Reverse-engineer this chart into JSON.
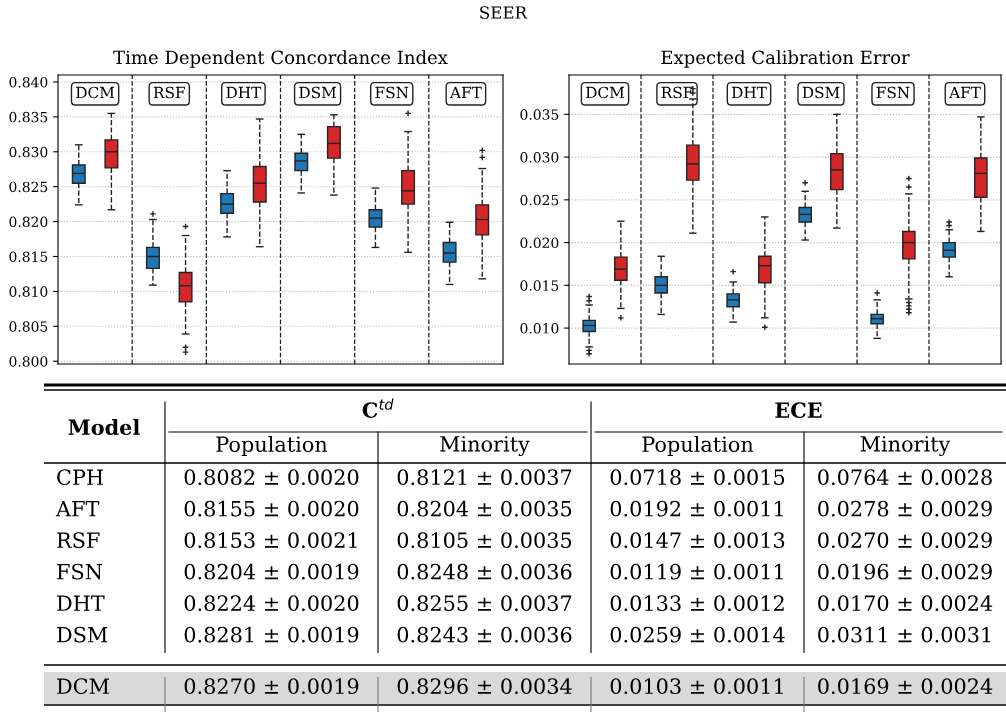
{
  "chart_data": [
    {
      "type": "box",
      "title": "Time Dependent Concordance Index",
      "annotations": [
        "SEER"
      ],
      "categories": [
        "DCM",
        "RSF",
        "DHT",
        "DSM",
        "FSN",
        "AFT"
      ],
      "grid": "y",
      "ylim": [
        0.7996,
        0.841
      ],
      "yticks": [
        {
          "value": 0.8,
          "label": "0.800"
        },
        {
          "value": 0.805,
          "label": "0.805"
        },
        {
          "value": 0.81,
          "label": "0.810"
        },
        {
          "value": 0.815,
          "label": "0.815"
        },
        {
          "value": 0.82,
          "label": "0.820"
        },
        {
          "value": 0.825,
          "label": "0.825"
        },
        {
          "value": 0.83,
          "label": "0.830"
        },
        {
          "value": 0.835,
          "label": "0.835"
        },
        {
          "value": 0.84,
          "label": "0.840"
        }
      ],
      "series": [
        {
          "color": "#1f77b4",
          "boxes": [
            {
              "low": 0.8224,
              "q1": 0.8255,
              "median": 0.8269,
              "q3": 0.8281,
              "high": 0.831
            },
            {
              "low": 0.8109,
              "q1": 0.8133,
              "median": 0.815,
              "q3": 0.8163,
              "high": 0.8203,
              "outliers": [
                0.8211
              ]
            },
            {
              "low": 0.8178,
              "q1": 0.8212,
              "median": 0.8225,
              "q3": 0.824,
              "high": 0.8273
            },
            {
              "low": 0.8241,
              "q1": 0.8273,
              "median": 0.8287,
              "q3": 0.8298,
              "high": 0.8325
            },
            {
              "low": 0.8163,
              "q1": 0.8192,
              "median": 0.8205,
              "q3": 0.8217,
              "high": 0.8248
            },
            {
              "low": 0.811,
              "q1": 0.8142,
              "median": 0.8155,
              "q3": 0.817,
              "high": 0.8199
            }
          ]
        },
        {
          "color": "#d62728",
          "boxes": [
            {
              "low": 0.8217,
              "q1": 0.8277,
              "median": 0.83,
              "q3": 0.8317,
              "high": 0.8355
            },
            {
              "low": 0.8039,
              "q1": 0.8085,
              "median": 0.8108,
              "q3": 0.8127,
              "high": 0.818,
              "outliers": [
                0.8193,
                0.802,
                0.8013
              ]
            },
            {
              "low": 0.8164,
              "q1": 0.8228,
              "median": 0.8255,
              "q3": 0.8279,
              "high": 0.8347
            },
            {
              "low": 0.8238,
              "q1": 0.8291,
              "median": 0.8312,
              "q3": 0.8336,
              "high": 0.8353
            },
            {
              "low": 0.8156,
              "q1": 0.8225,
              "median": 0.8244,
              "q3": 0.8273,
              "high": 0.8329,
              "outliers": [
                0.8355
              ]
            },
            {
              "low": 0.8118,
              "q1": 0.8181,
              "median": 0.8203,
              "q3": 0.8224,
              "high": 0.8276,
              "outliers": [
                0.8302,
                0.8292
              ]
            }
          ]
        }
      ]
    },
    {
      "type": "box",
      "title": "Expected Calibration Error",
      "categories": [
        "DCM",
        "RSF",
        "DHT",
        "DSM",
        "FSN",
        "AFT"
      ],
      "grid": "y",
      "ylim": [
        0.0058,
        0.0396
      ],
      "yticks": [
        {
          "value": 0.01,
          "label": "0.010"
        },
        {
          "value": 0.015,
          "label": "0.015"
        },
        {
          "value": 0.02,
          "label": "0.020"
        },
        {
          "value": 0.025,
          "label": "0.025"
        },
        {
          "value": 0.03,
          "label": "0.030"
        },
        {
          "value": 0.035,
          "label": "0.035"
        }
      ],
      "series": [
        {
          "color": "#1f77b4",
          "boxes": [
            {
              "low": 0.0078,
              "q1": 0.0096,
              "median": 0.0103,
              "q3": 0.0109,
              "high": 0.0127,
              "outliers": [
                0.0137,
                0.0132,
                0.0074,
                0.007
              ]
            },
            {
              "low": 0.0116,
              "q1": 0.0141,
              "median": 0.015,
              "q3": 0.016,
              "high": 0.0184
            },
            {
              "low": 0.0107,
              "q1": 0.0125,
              "median": 0.0133,
              "q3": 0.014,
              "high": 0.0154,
              "outliers": [
                0.0166
              ]
            },
            {
              "low": 0.0203,
              "q1": 0.0224,
              "median": 0.0233,
              "q3": 0.0241,
              "high": 0.026,
              "outliers": [
                0.027
              ]
            },
            {
              "low": 0.0088,
              "q1": 0.0105,
              "median": 0.0111,
              "q3": 0.0116,
              "high": 0.0133,
              "outliers": [
                0.0141
              ]
            },
            {
              "low": 0.016,
              "q1": 0.0183,
              "median": 0.0191,
              "q3": 0.02,
              "high": 0.0215,
              "outliers": [
                0.0224,
                0.022
              ]
            }
          ]
        },
        {
          "color": "#d62728",
          "boxes": [
            {
              "low": 0.0123,
              "q1": 0.0156,
              "median": 0.0169,
              "q3": 0.0183,
              "high": 0.0225,
              "outliers": [
                0.0112
              ]
            },
            {
              "low": 0.0211,
              "q1": 0.0273,
              "median": 0.0292,
              "q3": 0.0314,
              "high": 0.0368,
              "outliers": [
                0.038,
                0.0375
              ]
            },
            {
              "low": 0.0112,
              "q1": 0.0153,
              "median": 0.0173,
              "q3": 0.0184,
              "high": 0.023,
              "outliers": [
                0.0101
              ]
            },
            {
              "low": 0.0217,
              "q1": 0.0262,
              "median": 0.0285,
              "q3": 0.0304,
              "high": 0.035
            },
            {
              "low": 0.0134,
              "q1": 0.0181,
              "median": 0.02,
              "q3": 0.0213,
              "high": 0.0257,
              "outliers": [
                0.0275,
                0.0265,
                0.013,
                0.0126,
                0.0122,
                0.0118
              ]
            },
            {
              "low": 0.0213,
              "q1": 0.0253,
              "median": 0.0281,
              "q3": 0.0299,
              "high": 0.0347
            }
          ]
        }
      ]
    },
    {
      "type": "other",
      "annotations": [
        "Model",
        "C$^{td}$",
        "ECE"
      ],
      "categories": [
        "Population",
        "Minority",
        "Population",
        "Minority"
      ],
      "y_categories": [
        "CPH",
        "AFT",
        "RSF",
        "FSN",
        "DHT",
        "DSM",
        "DCM"
      ],
      "cell_labels": [
        [
          "0.8082 ± 0.0020",
          "0.8121 ± 0.0037",
          "0.0718 ± 0.0015",
          "0.0764 ± 0.0028"
        ],
        [
          "0.8155 ± 0.0020",
          "0.8204 ± 0.0035",
          "0.0192 ± 0.0011",
          "0.0278 ± 0.0029"
        ],
        [
          "0.8153 ± 0.0021",
          "0.8105 ± 0.0035",
          "0.0147 ± 0.0013",
          "0.0270 ± 0.0029"
        ],
        [
          "0.8204 ± 0.0019",
          "0.8248 ± 0.0036",
          "0.0119 ± 0.0011",
          "0.0196 ± 0.0029"
        ],
        [
          "0.8224 ± 0.0020",
          "0.8255 ± 0.0037",
          "0.0133 ± 0.0012",
          "0.0170 ± 0.0024"
        ],
        [
          "0.8281 ± 0.0019",
          "0.8243 ± 0.0036",
          "0.0259 ± 0.0014",
          "0.0311 ± 0.0031"
        ],
        [
          "0.8270 ± 0.0019",
          "0.8296 ± 0.0034",
          "0.0103 ± 0.0011",
          "0.0169 ± 0.0024"
        ]
      ]
    }
  ]
}
